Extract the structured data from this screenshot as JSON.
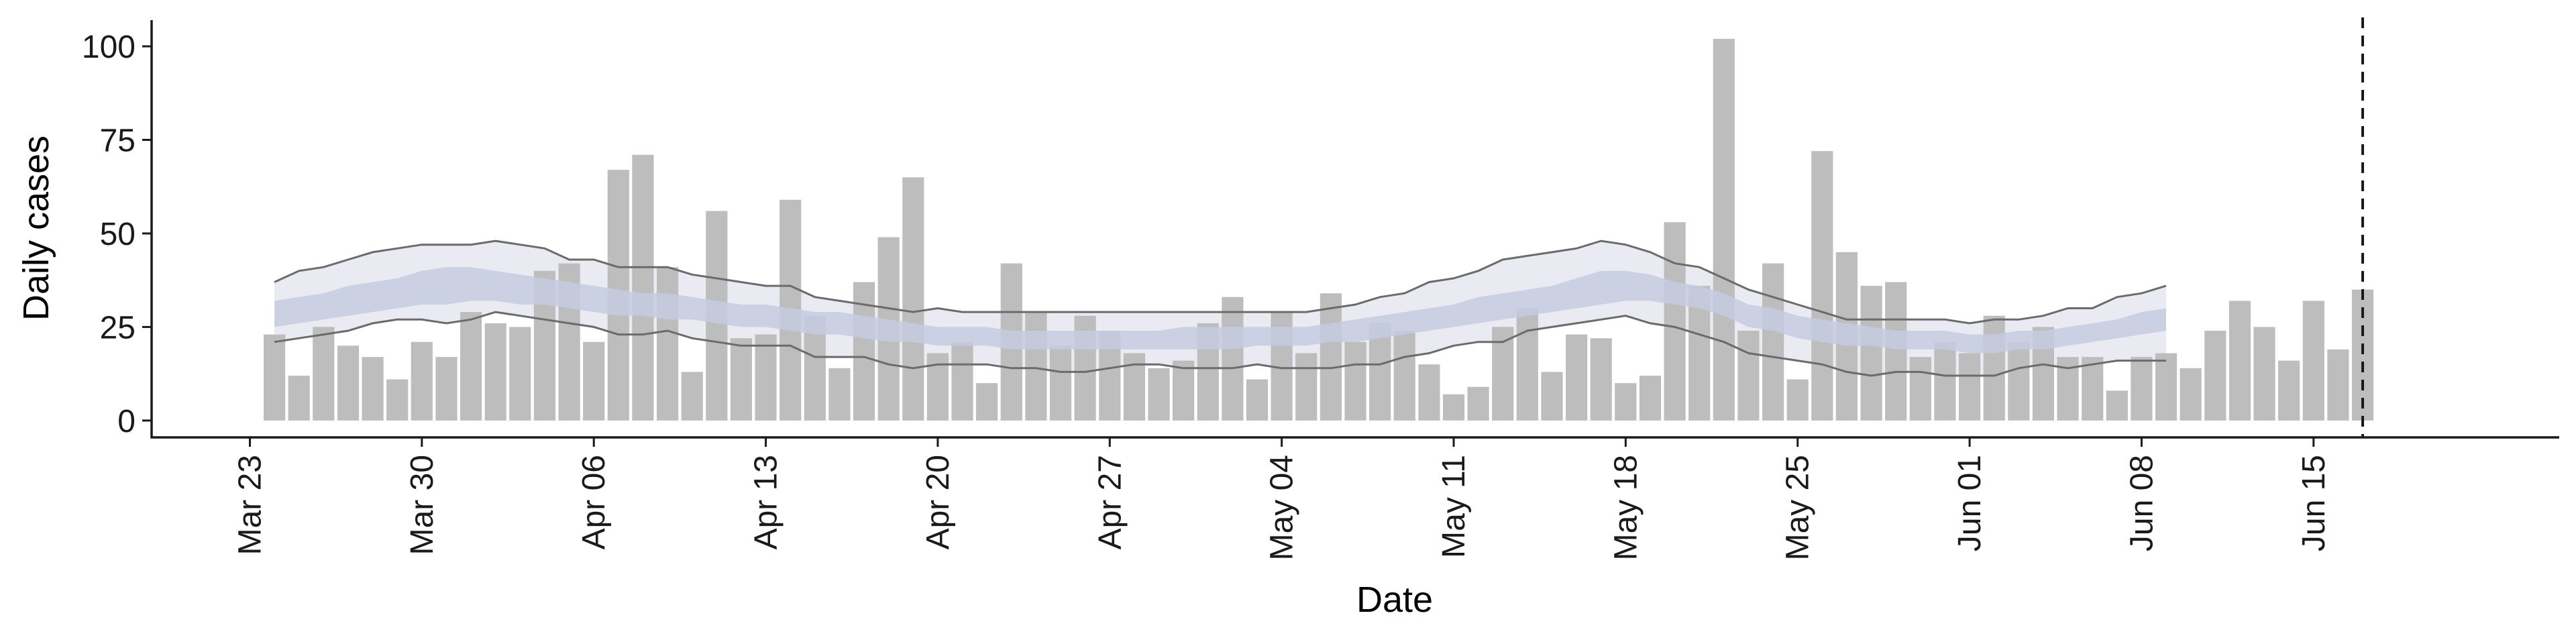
{
  "chart_data": {
    "type": "bar",
    "xlabel": "Date",
    "ylabel": "Daily cases",
    "ylim": [
      -4.5,
      107
    ],
    "y_ticks": [
      0,
      25,
      50,
      75,
      100
    ],
    "x_ticks": [
      {
        "date": "2020-03-23",
        "label": "Mar 23"
      },
      {
        "date": "2020-03-30",
        "label": "Mar 30"
      },
      {
        "date": "2020-04-06",
        "label": "Apr 06"
      },
      {
        "date": "2020-04-13",
        "label": "Apr 13"
      },
      {
        "date": "2020-04-20",
        "label": "Apr 20"
      },
      {
        "date": "2020-04-27",
        "label": "Apr 27"
      },
      {
        "date": "2020-05-04",
        "label": "May 04"
      },
      {
        "date": "2020-05-11",
        "label": "May 11"
      },
      {
        "date": "2020-05-18",
        "label": "May 18"
      },
      {
        "date": "2020-05-25",
        "label": "May 25"
      },
      {
        "date": "2020-06-01",
        "label": "Jun 01"
      },
      {
        "date": "2020-06-08",
        "label": "Jun 08"
      },
      {
        "date": "2020-06-15",
        "label": "Jun 15"
      }
    ],
    "x_range": [
      "2020-03-19",
      "2020-06-25"
    ],
    "bar_start_date": "2020-03-24",
    "bars": [
      23,
      12,
      25,
      20,
      17,
      11,
      21,
      17,
      29,
      26,
      25,
      40,
      42,
      21,
      67,
      71,
      41,
      13,
      56,
      22,
      23,
      59,
      28,
      14,
      37,
      49,
      65,
      18,
      21,
      10,
      42,
      29,
      20,
      28,
      24,
      18,
      14,
      16,
      26,
      33,
      11,
      29,
      18,
      34,
      21,
      26,
      24,
      15,
      7,
      9,
      25,
      30,
      13,
      23,
      22,
      10,
      12,
      53,
      36,
      102,
      24,
      42,
      11,
      72,
      45,
      36,
      37,
      17,
      21,
      18,
      28,
      21,
      25,
      17,
      17,
      8,
      17,
      18,
      14,
      24,
      32,
      25,
      16,
      32,
      19,
      35
    ],
    "band_start_date": "2020-03-24",
    "estimate_outer_upper": [
      37,
      40,
      41,
      43,
      45,
      46,
      47,
      47,
      47,
      48,
      47,
      46,
      43,
      43,
      41,
      41,
      41,
      39,
      38,
      37,
      36,
      36,
      33,
      32,
      31,
      30,
      29,
      30,
      29,
      29,
      29,
      29,
      29,
      29,
      29,
      29,
      29,
      29,
      29,
      29,
      29,
      29,
      29,
      30,
      31,
      33,
      34,
      37,
      38,
      40,
      43,
      44,
      45,
      46,
      48,
      47,
      45,
      42,
      41,
      38,
      35,
      33,
      31,
      29,
      27,
      27,
      27,
      27,
      27,
      26,
      27,
      27,
      28,
      30,
      30,
      33,
      34,
      36
    ],
    "estimate_outer_lower": [
      21,
      22,
      23,
      24,
      26,
      27,
      27,
      26,
      27,
      29,
      28,
      27,
      26,
      25,
      23,
      23,
      24,
      22,
      21,
      20,
      20,
      20,
      17,
      17,
      17,
      15,
      14,
      15,
      15,
      15,
      14,
      14,
      13,
      13,
      14,
      15,
      15,
      14,
      14,
      14,
      15,
      14,
      14,
      14,
      15,
      15,
      17,
      18,
      20,
      21,
      21,
      24,
      25,
      26,
      27,
      28,
      26,
      25,
      23,
      21,
      18,
      17,
      16,
      15,
      13,
      12,
      13,
      13,
      12,
      12,
      12,
      14,
      15,
      14,
      15,
      16,
      16,
      16
    ],
    "estimate_inner_upper": [
      32,
      33,
      34,
      36,
      37,
      38,
      40,
      41,
      41,
      40,
      39,
      38,
      37,
      36,
      35,
      34,
      34,
      33,
      32,
      31,
      31,
      30,
      29,
      29,
      28,
      27,
      26,
      25,
      25,
      25,
      24,
      24,
      24,
      24,
      24,
      24,
      24,
      25,
      25,
      25,
      25,
      25,
      25,
      26,
      27,
      28,
      29,
      30,
      31,
      33,
      34,
      35,
      36,
      38,
      40,
      40,
      39,
      37,
      36,
      34,
      31,
      30,
      28,
      27,
      26,
      25,
      24,
      24,
      24,
      23,
      23,
      24,
      24,
      25,
      26,
      27,
      29,
      30
    ],
    "estimate_inner_lower": [
      25,
      26,
      27,
      28,
      29,
      30,
      31,
      31,
      32,
      32,
      31,
      31,
      30,
      29,
      28,
      28,
      27,
      27,
      26,
      25,
      25,
      24,
      23,
      23,
      22,
      21,
      21,
      20,
      20,
      20,
      19,
      19,
      19,
      19,
      19,
      19,
      19,
      19,
      19,
      19,
      20,
      20,
      20,
      21,
      21,
      22,
      23,
      24,
      25,
      26,
      27,
      28,
      29,
      30,
      31,
      32,
      32,
      31,
      30,
      28,
      25,
      24,
      22,
      21,
      20,
      20,
      19,
      19,
      19,
      18,
      18,
      19,
      19,
      20,
      21,
      22,
      23,
      24
    ],
    "grid": false,
    "legend": "none",
    "reference_line_date": "2020-06-17",
    "colors": {
      "bars": "#bdbdbd",
      "outer_band": "#e9eaf2",
      "inner_band": "#c6cde0",
      "outline": "#6b6b6b",
      "axis": "#1a1a1a",
      "reference_line": "#1a1a1a"
    }
  }
}
